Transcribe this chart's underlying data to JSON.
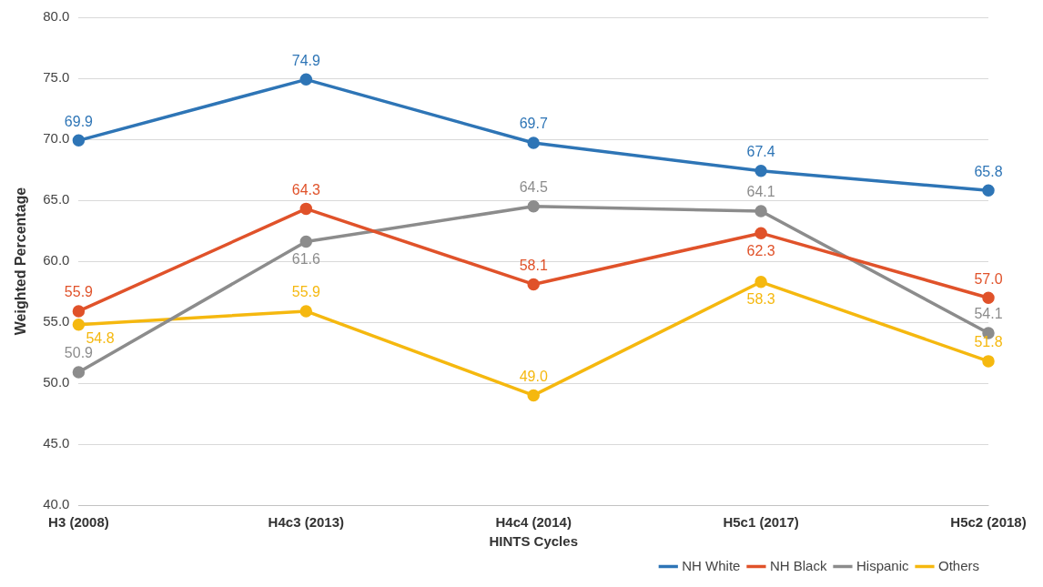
{
  "chart_data": {
    "type": "line",
    "xlabel": "HINTS Cycles",
    "ylabel": "Weighted Percentage",
    "categories": [
      "H3 (2008)",
      "H4c3 (2013)",
      "H4c4 (2014)",
      "H5c1 (2017)",
      "H5c2 (2018)"
    ],
    "series": [
      {
        "name": "NH White",
        "color": "#2e75b6",
        "values": [
          69.9,
          74.9,
          69.7,
          67.4,
          65.8
        ],
        "value_labels": [
          "69.9",
          "74.9",
          "69.7",
          "67.4",
          "65.8"
        ]
      },
      {
        "name": "NH Black",
        "color": "#e0522a",
        "values": [
          55.9,
          64.3,
          58.1,
          62.3,
          57.0
        ],
        "value_labels": [
          "55.9",
          "64.3",
          "58.1",
          "62.3",
          "57.0"
        ]
      },
      {
        "name": "Hispanic",
        "color": "#8c8c8c",
        "values": [
          50.9,
          61.6,
          64.5,
          64.1,
          54.1
        ],
        "value_labels": [
          "50.9",
          "61.6",
          "64.5",
          "64.1",
          "54.1"
        ]
      },
      {
        "name": "Others",
        "color": "#f5b80f",
        "values": [
          54.8,
          55.9,
          49.0,
          58.3,
          51.8
        ],
        "value_labels": [
          "54.8",
          "55.9",
          "49.0",
          "58.3",
          "51.8"
        ]
      }
    ],
    "ylim": [
      40,
      80
    ],
    "yticks": [
      {
        "value": 40,
        "label": "40.0"
      },
      {
        "value": 45,
        "label": "45.0"
      },
      {
        "value": 50,
        "label": "50.0"
      },
      {
        "value": 55,
        "label": "55.0"
      },
      {
        "value": 60,
        "label": "60.0"
      },
      {
        "value": 65,
        "label": "65.0"
      },
      {
        "value": 70,
        "label": "70.0"
      },
      {
        "value": 75,
        "label": "75.0"
      },
      {
        "value": 80,
        "label": "80.0"
      }
    ],
    "grid": "y",
    "legend": "bottom right",
    "marker": "circle",
    "line_style": "solid"
  }
}
